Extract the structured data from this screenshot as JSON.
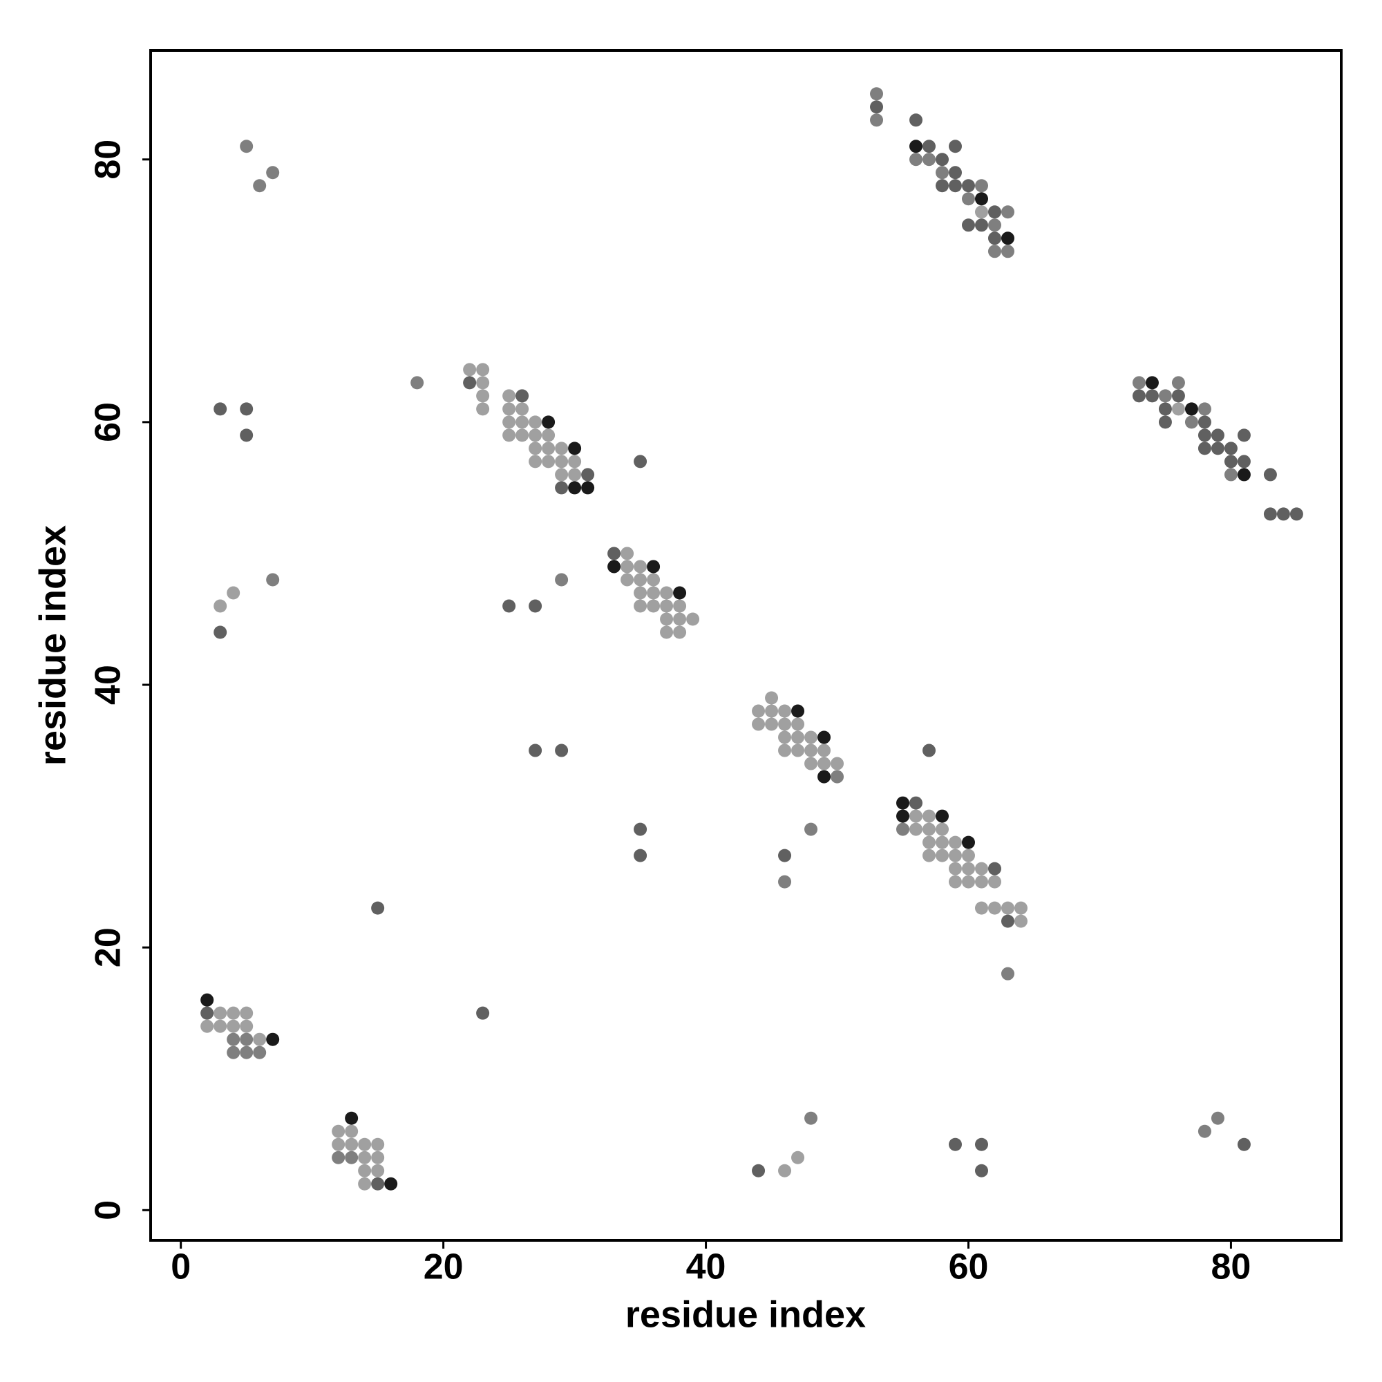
{
  "chart_data": {
    "type": "scatter",
    "xlabel": "residue index",
    "ylabel": "residue index",
    "xlim": [
      -2.3,
      88.4
    ],
    "ylim": [
      -2.3,
      88.3
    ],
    "xticks": [
      0,
      20,
      40,
      60,
      80
    ],
    "yticks": [
      0,
      20,
      40,
      60,
      80
    ],
    "series": [
      {
        "color": "#a0a0a0",
        "x": [
          3,
          4,
          22,
          23,
          23,
          23,
          23,
          25,
          25,
          26,
          25,
          26,
          27,
          25,
          26,
          27,
          28,
          27,
          28,
          29,
          27,
          28,
          29,
          30,
          29,
          30,
          34,
          34,
          35,
          34,
          35,
          36,
          35,
          36,
          37,
          35,
          36,
          37,
          38,
          37,
          38,
          39,
          37,
          38,
          45,
          44,
          45,
          46,
          44,
          45,
          46,
          47,
          46,
          47,
          48,
          46,
          47,
          48,
          49,
          48,
          49,
          50,
          56,
          57,
          56,
          57,
          58,
          57,
          58,
          59,
          57,
          58,
          59,
          60,
          59,
          60,
          61,
          59,
          60,
          61,
          62,
          61,
          62,
          63,
          64,
          64,
          3,
          4,
          5,
          2,
          3,
          4,
          5,
          6,
          12,
          13,
          12,
          13,
          14,
          15,
          14,
          15,
          14,
          15,
          14,
          46,
          47,
          61,
          76
        ],
        "values": [
          46,
          47,
          64,
          64,
          63,
          62,
          61,
          62,
          61,
          61,
          60,
          60,
          60,
          59,
          59,
          59,
          59,
          58,
          58,
          58,
          57,
          57,
          57,
          57,
          56,
          56,
          50,
          49,
          49,
          48,
          48,
          48,
          47,
          47,
          47,
          46,
          46,
          46,
          46,
          45,
          45,
          45,
          44,
          44,
          39,
          38,
          38,
          38,
          37,
          37,
          37,
          37,
          36,
          36,
          36,
          35,
          35,
          35,
          35,
          34,
          34,
          34,
          30,
          30,
          29,
          29,
          29,
          28,
          28,
          28,
          27,
          27,
          27,
          27,
          26,
          26,
          26,
          25,
          25,
          25,
          25,
          23,
          23,
          23,
          23,
          22,
          15,
          15,
          15,
          14,
          14,
          14,
          14,
          13,
          6,
          6,
          5,
          5,
          5,
          5,
          4,
          4,
          3,
          3,
          2,
          3,
          4,
          76,
          61
        ]
      },
      {
        "color": "#7f7f7f",
        "x": [
          5,
          6,
          7,
          7,
          18,
          29,
          50,
          48,
          46,
          55,
          63,
          4,
          5,
          4,
          5,
          6,
          12,
          13,
          48,
          78,
          79,
          53,
          53,
          56,
          57,
          58,
          61,
          60,
          63,
          62,
          62,
          63,
          73,
          76,
          75,
          78,
          77,
          80
        ],
        "values": [
          81,
          78,
          79,
          48,
          63,
          48,
          33,
          29,
          25,
          29,
          18,
          13,
          13,
          12,
          12,
          12,
          4,
          4,
          7,
          6,
          7,
          85,
          83,
          80,
          80,
          79,
          78,
          77,
          76,
          75,
          73,
          73,
          63,
          63,
          62,
          61,
          60,
          56
        ]
      },
      {
        "color": "#606060",
        "x": [
          3,
          5,
          5,
          3,
          22,
          26,
          31,
          29,
          35,
          33,
          25,
          27,
          27,
          29,
          35,
          35,
          46,
          57,
          56,
          62,
          63,
          15,
          23,
          2,
          15,
          44,
          59,
          61,
          61,
          81,
          53,
          56,
          57,
          59,
          58,
          59,
          58,
          59,
          60,
          62,
          60,
          61,
          62,
          73,
          74,
          76,
          75,
          75,
          78,
          78,
          79,
          81,
          78,
          79,
          80,
          80,
          81,
          83,
          83,
          84,
          85
        ],
        "values": [
          61,
          61,
          59,
          44,
          63,
          62,
          56,
          55,
          57,
          50,
          46,
          46,
          35,
          35,
          29,
          27,
          27,
          35,
          31,
          26,
          22,
          23,
          15,
          15,
          2,
          3,
          5,
          5,
          3,
          5,
          84,
          83,
          81,
          81,
          80,
          79,
          78,
          78,
          78,
          76,
          75,
          75,
          74,
          62,
          62,
          62,
          61,
          60,
          60,
          59,
          59,
          59,
          58,
          58,
          58,
          57,
          57,
          56,
          53,
          53,
          53
        ]
      },
      {
        "color": "#1a1a1a",
        "x": [
          28,
          30,
          30,
          31,
          33,
          36,
          38,
          47,
          49,
          49,
          55,
          55,
          58,
          60,
          2,
          7,
          13,
          16,
          56,
          61,
          63,
          74,
          77,
          81
        ],
        "values": [
          60,
          58,
          55,
          55,
          49,
          49,
          47,
          38,
          36,
          33,
          31,
          30,
          30,
          28,
          16,
          13,
          7,
          2,
          81,
          77,
          74,
          63,
          61,
          56
        ]
      }
    ]
  }
}
